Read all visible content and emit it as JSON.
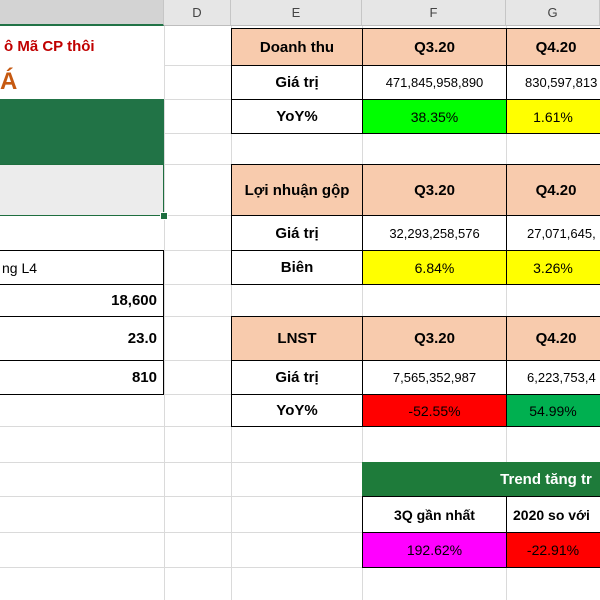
{
  "columns": [
    "D",
    "E",
    "F",
    "G"
  ],
  "left_panel": {
    "note": "ô Mã CP thôi",
    "title_fragment": "Á",
    "label_fragment": "ng L4",
    "value_1": "18,600",
    "value_2": "23.0",
    "value_3": "810"
  },
  "revenue": {
    "header": "Doanh thu",
    "q1": "Q3.20",
    "q2": "Q4.20",
    "row1_label": "Giá trị",
    "row1_v1": "471,845,958,890",
    "row1_v2": "830,597,813",
    "row2_label": "YoY%",
    "row2_v1": "38.35%",
    "row2_v2": "1.61%"
  },
  "gross_profit": {
    "header": "Lợi nhuận gộp",
    "q1": "Q3.20",
    "q2": "Q4.20",
    "row1_label": "Giá trị",
    "row1_v1": "32,293,258,576",
    "row1_v2": "27,071,645,",
    "row2_label": "Biên",
    "row2_v1": "6.84%",
    "row2_v2": "3.26%"
  },
  "net_profit": {
    "header": "LNST",
    "q1": "Q3.20",
    "q2": "Q4.20",
    "row1_label": "Giá trị",
    "row1_v1": "7,565,352,987",
    "row1_v2": "6,223,753,4",
    "row2_label": "YoY%",
    "row2_v1": "-52.55%",
    "row2_v2": "54.99%"
  },
  "trend": {
    "header": "Trend tăng tr",
    "col1": "3Q gần nhất",
    "col2": "2020 so với",
    "v1": "192.62%",
    "v2": "-22.91%"
  },
  "colors": {
    "peach": "#f8cbad",
    "green": "#00ff00",
    "yellow": "#ffff00",
    "red": "#ff0000",
    "dark_green": "#00b050",
    "magenta": "#ff00ff",
    "excel_green": "#217346",
    "trend_green": "#1e7b3a"
  }
}
